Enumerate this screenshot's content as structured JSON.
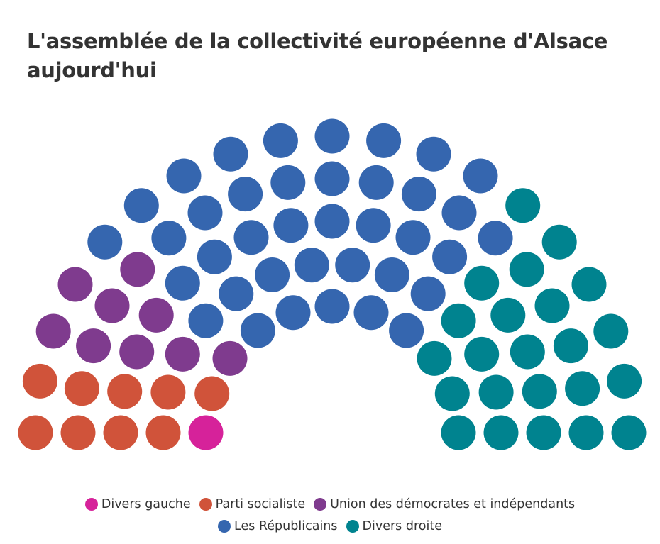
{
  "chart_data": {
    "type": "parliament",
    "title": "L'assemblée de la collectivité européenne d'Alsace aujourd'hui",
    "total_seats": 80,
    "series": [
      {
        "name": "Divers gauche",
        "seats": 1,
        "color": "#D6229A"
      },
      {
        "name": "Parti socialiste",
        "seats": 9,
        "color": "#D0533A"
      },
      {
        "name": "Union des démocrates et indépendants",
        "seats": 9,
        "color": "#7F3B8E"
      },
      {
        "name": "Les Républicains",
        "seats": 38,
        "color": "#3566AF"
      },
      {
        "name": "Divers droite",
        "seats": 23,
        "color": "#00838F"
      }
    ]
  }
}
